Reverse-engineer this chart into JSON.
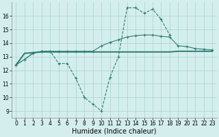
{
  "x": [
    0,
    1,
    2,
    3,
    4,
    5,
    6,
    7,
    8,
    9,
    10,
    11,
    12,
    13,
    14,
    15,
    16,
    17,
    18,
    19,
    20,
    21,
    22,
    23
  ],
  "line1_y": [
    12.4,
    12.8,
    13.3,
    13.4,
    13.4,
    12.5,
    12.5,
    11.4,
    10.0,
    9.5,
    9.0,
    11.5,
    13.0,
    16.6,
    16.6,
    16.2,
    16.5,
    15.75,
    14.6
  ],
  "line1_x": [
    0,
    1,
    2,
    3,
    4,
    5,
    6,
    7,
    8,
    9,
    10,
    11,
    12,
    13,
    14,
    15,
    16,
    17,
    18
  ],
  "line2_y": [
    12.4,
    13.25,
    13.3,
    13.35,
    13.35,
    13.35,
    13.35,
    13.35,
    13.35,
    13.35,
    13.35,
    13.35,
    13.35,
    13.35,
    13.35,
    13.35,
    13.35,
    13.35,
    13.35,
    13.4,
    13.4,
    13.4,
    13.4,
    13.4
  ],
  "line3_y": [
    12.4,
    12.8,
    13.25,
    13.4,
    13.4,
    13.4,
    13.4,
    13.4,
    13.4,
    13.4,
    13.8,
    14.05,
    14.25,
    14.45,
    14.55,
    14.6,
    14.6,
    14.5,
    14.45,
    13.8,
    13.75,
    13.6,
    13.55,
    13.5
  ],
  "color": "#2d7d6e",
  "bg_color": "#d4eeee",
  "grid_color": "#aad0d0",
  "xlabel": "Humidex (Indice chaleur)",
  "xlim": [
    -0.5,
    23.5
  ],
  "ylim": [
    8.5,
    17.0
  ],
  "yticks": [
    9,
    10,
    11,
    12,
    13,
    14,
    15,
    16
  ],
  "xticks": [
    0,
    1,
    2,
    3,
    4,
    5,
    6,
    7,
    8,
    9,
    10,
    11,
    12,
    13,
    14,
    15,
    16,
    17,
    18,
    19,
    20,
    21,
    22,
    23
  ],
  "tick_fontsize": 5.5,
  "label_fontsize": 7.0
}
